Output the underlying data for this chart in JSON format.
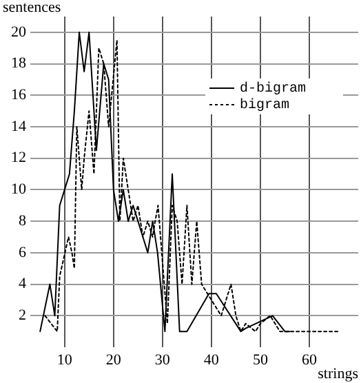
{
  "chart_data": {
    "type": "line",
    "ylabel": "sentences",
    "xlabel": "strings",
    "xlim": [
      3,
      70
    ],
    "ylim": [
      0,
      21
    ],
    "xticks": [
      10,
      20,
      30,
      40,
      50,
      60
    ],
    "yticks": [
      2,
      4,
      6,
      8,
      10,
      12,
      14,
      16,
      18,
      20
    ],
    "grid": true,
    "legend": "top right",
    "marker": "none",
    "series": [
      {
        "name": "d-bigram",
        "color": "#000000",
        "line_style": "solid",
        "x": [
          5,
          7,
          8,
          9,
          10,
          11,
          12,
          13,
          14,
          15,
          16.5,
          18,
          19,
          20,
          21,
          22,
          23,
          24,
          25,
          26,
          27,
          28,
          29,
          30.5,
          32,
          33.5,
          35,
          39.5,
          41,
          46,
          47,
          52.5,
          55,
          56
        ],
        "values": [
          1,
          4,
          2,
          9,
          10,
          11,
          15,
          20,
          17.5,
          20,
          12.5,
          18,
          17,
          10,
          8,
          10,
          8,
          9,
          8,
          7,
          6,
          8,
          6,
          1,
          11,
          1,
          1,
          3.4,
          3.4,
          1,
          1.2,
          2,
          1,
          1
        ]
      },
      {
        "name": "bigram",
        "color": "#000000",
        "line_style": "dotted",
        "x": [
          6,
          8.5,
          9,
          10.8,
          11.5,
          12,
          12.5,
          13.5,
          14,
          15,
          16,
          17,
          18,
          19,
          20.7,
          21.3,
          22,
          23,
          24,
          25,
          26,
          27,
          28,
          28.5,
          29.1,
          31,
          32,
          33,
          34,
          35,
          36,
          37,
          38,
          39,
          40,
          42,
          44,
          45,
          46,
          47,
          49,
          50,
          52,
          54,
          56,
          66
        ],
        "values": [
          2,
          1,
          4.5,
          7,
          6,
          5,
          14,
          10,
          12,
          15,
          11,
          19,
          18,
          14,
          19.5,
          8,
          12,
          10,
          8,
          9,
          7,
          8,
          7,
          8,
          9,
          1.5,
          9,
          8,
          4,
          9,
          4,
          8,
          4,
          3.5,
          3,
          2,
          4,
          2,
          1,
          1.5,
          1,
          1.5,
          2,
          1,
          1,
          1
        ]
      }
    ]
  }
}
